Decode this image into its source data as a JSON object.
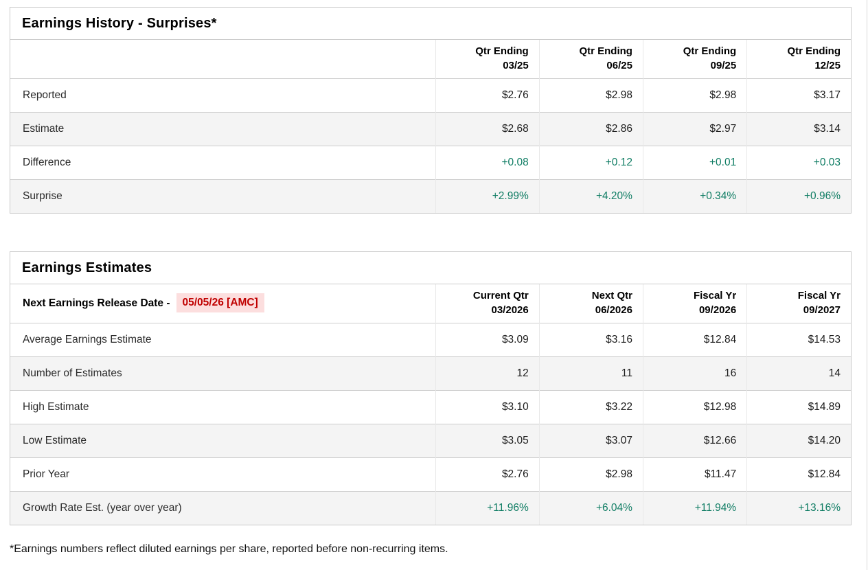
{
  "colors": {
    "positive_green": "#107d64",
    "alert_red_text": "#c00000",
    "alert_red_background": "#fcdede",
    "row_stripe": "#f4f4f4",
    "table_border": "#c9c9c9"
  },
  "history": {
    "title": "Earnings History - Surprises*",
    "columns": [
      {
        "line1": "Qtr Ending",
        "line2": "03/25"
      },
      {
        "line1": "Qtr Ending",
        "line2": "06/25"
      },
      {
        "line1": "Qtr Ending",
        "line2": "09/25"
      },
      {
        "line1": "Qtr Ending",
        "line2": "12/25"
      }
    ],
    "rows": [
      {
        "label": "Reported",
        "values": [
          "$2.76",
          "$2.98",
          "$2.98",
          "$3.17"
        ]
      },
      {
        "label": "Estimate",
        "values": [
          "$2.68",
          "$2.86",
          "$2.97",
          "$3.14"
        ]
      },
      {
        "label": "Difference",
        "values": [
          "+0.08",
          "+0.12",
          "+0.01",
          "+0.03"
        ]
      },
      {
        "label": "Surprise",
        "values": [
          "+2.99%",
          "+4.20%",
          "+0.34%",
          "+0.96%"
        ]
      }
    ]
  },
  "estimates": {
    "title": "Earnings Estimates",
    "release_date_label": "Next Earnings Release Date -",
    "release_date": "05/05/26 [AMC]",
    "columns": [
      {
        "line1": "Current Qtr",
        "line2": "03/2026"
      },
      {
        "line1": "Next Qtr",
        "line2": "06/2026"
      },
      {
        "line1": "Fiscal Yr",
        "line2": "09/2026"
      },
      {
        "line1": "Fiscal Yr",
        "line2": "09/2027"
      }
    ],
    "rows": [
      {
        "label": "Average Earnings Estimate",
        "values": [
          "$3.09",
          "$3.16",
          "$12.84",
          "$14.53"
        ]
      },
      {
        "label": "Number of Estimates",
        "values": [
          "12",
          "11",
          "16",
          "14"
        ]
      },
      {
        "label": "High Estimate",
        "values": [
          "$3.10",
          "$3.22",
          "$12.98",
          "$14.89"
        ]
      },
      {
        "label": "Low Estimate",
        "values": [
          "$3.05",
          "$3.07",
          "$12.66",
          "$14.20"
        ]
      },
      {
        "label": "Prior Year",
        "values": [
          "$2.76",
          "$2.98",
          "$11.47",
          "$12.84"
        ]
      },
      {
        "label": "Growth Rate Est. (year over year)",
        "values": [
          "+11.96%",
          "+6.04%",
          "+11.94%",
          "+13.16%"
        ]
      }
    ]
  },
  "footnote": "*Earnings numbers reflect diluted earnings per share, reported before non-recurring items."
}
